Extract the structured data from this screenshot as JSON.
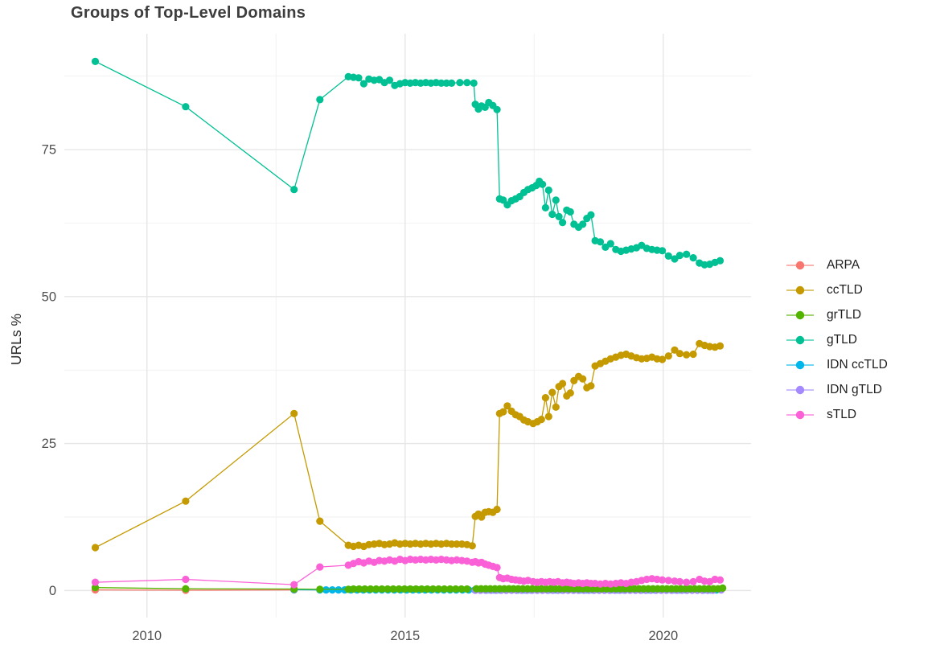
{
  "title": "Groups of Top-Level Domains",
  "axes": {
    "y_label": "URLs %",
    "y_tick_labels": [
      "0",
      "25",
      "50",
      "75"
    ],
    "x_tick_labels": [
      "2010",
      "2015",
      "2020"
    ]
  },
  "colors": {
    "background": "#ffffff",
    "grid_major": "#e6e6e6",
    "grid_minor": "#f2f2f2",
    "axis_text": "#4f4f4f",
    "axis_title_text": "#2e2e2e",
    "title_text": "#3d3d3d",
    "legend_text": "#1f1f1f"
  },
  "chart_data": {
    "type": "line",
    "title": "Groups of Top-Level Domains",
    "xlabel": "",
    "ylabel": "URLs %",
    "xlim": [
      2008.4,
      2021.7
    ],
    "ylim": [
      -4.6,
      94.7
    ],
    "x_ticks": [
      2010,
      2015,
      2020
    ],
    "x_minor_ticks": [
      2012.5,
      2017.5
    ],
    "y_ticks": [
      0,
      25,
      50,
      75
    ],
    "y_minor_ticks": [
      12.5,
      37.5,
      62.5,
      87.5
    ],
    "grid": true,
    "legend_position": "right",
    "marker_radius": 4.6,
    "draw_order": [
      0,
      4,
      5,
      2,
      6,
      1,
      3
    ],
    "series": [
      {
        "name": "ARPA",
        "color": "#F8766D",
        "points": [
          [
            2009.0,
            0.1
          ],
          [
            2010.75,
            0.05
          ],
          [
            2012.85,
            0.1
          ]
        ]
      },
      {
        "name": "ccTLD",
        "color": "#C49A00",
        "points": [
          [
            2009.0,
            7.3
          ],
          [
            2010.75,
            15.2
          ],
          [
            2012.85,
            30.1
          ],
          [
            2013.35,
            11.8
          ],
          [
            2013.9,
            7.7
          ],
          [
            2014.0,
            7.5
          ],
          [
            2014.1,
            7.7
          ],
          [
            2014.2,
            7.5
          ],
          [
            2014.3,
            7.8
          ],
          [
            2014.4,
            7.9
          ],
          [
            2014.5,
            8.0
          ],
          [
            2014.6,
            7.8
          ],
          [
            2014.7,
            7.9
          ],
          [
            2014.8,
            8.1
          ],
          [
            2014.9,
            7.9
          ],
          [
            2015.0,
            8.0
          ],
          [
            2015.1,
            7.9
          ],
          [
            2015.2,
            8.0
          ],
          [
            2015.3,
            7.9
          ],
          [
            2015.4,
            8.0
          ],
          [
            2015.5,
            7.9
          ],
          [
            2015.6,
            8.0
          ],
          [
            2015.7,
            7.9
          ],
          [
            2015.8,
            8.0
          ],
          [
            2015.9,
            7.9
          ],
          [
            2016.0,
            7.9
          ],
          [
            2016.1,
            7.9
          ],
          [
            2016.2,
            7.8
          ],
          [
            2016.3,
            7.6
          ],
          [
            2016.36,
            12.6
          ],
          [
            2016.42,
            13.0
          ],
          [
            2016.48,
            12.5
          ],
          [
            2016.55,
            13.3
          ],
          [
            2016.62,
            13.4
          ],
          [
            2016.7,
            13.3
          ],
          [
            2016.78,
            13.8
          ],
          [
            2016.83,
            30.1
          ],
          [
            2016.9,
            30.4
          ],
          [
            2016.98,
            31.4
          ],
          [
            2017.06,
            30.5
          ],
          [
            2017.14,
            29.9
          ],
          [
            2017.22,
            29.6
          ],
          [
            2017.3,
            29.0
          ],
          [
            2017.38,
            28.7
          ],
          [
            2017.48,
            28.4
          ],
          [
            2017.56,
            28.7
          ],
          [
            2017.64,
            29.1
          ],
          [
            2017.72,
            32.8
          ],
          [
            2017.78,
            29.6
          ],
          [
            2017.85,
            33.7
          ],
          [
            2017.92,
            31.2
          ],
          [
            2017.98,
            34.7
          ],
          [
            2018.05,
            35.2
          ],
          [
            2018.13,
            33.1
          ],
          [
            2018.2,
            33.6
          ],
          [
            2018.27,
            35.7
          ],
          [
            2018.36,
            36.4
          ],
          [
            2018.44,
            36.0
          ],
          [
            2018.52,
            34.5
          ],
          [
            2018.6,
            34.8
          ],
          [
            2018.68,
            38.2
          ],
          [
            2018.78,
            38.6
          ],
          [
            2018.88,
            39.0
          ],
          [
            2018.98,
            39.4
          ],
          [
            2019.08,
            39.7
          ],
          [
            2019.18,
            40.0
          ],
          [
            2019.28,
            40.2
          ],
          [
            2019.38,
            39.9
          ],
          [
            2019.48,
            39.6
          ],
          [
            2019.58,
            39.4
          ],
          [
            2019.68,
            39.5
          ],
          [
            2019.78,
            39.7
          ],
          [
            2019.88,
            39.4
          ],
          [
            2019.98,
            39.3
          ],
          [
            2020.1,
            39.9
          ],
          [
            2020.22,
            40.9
          ],
          [
            2020.32,
            40.3
          ],
          [
            2020.45,
            40.1
          ],
          [
            2020.58,
            40.2
          ],
          [
            2020.7,
            42.0
          ],
          [
            2020.8,
            41.7
          ],
          [
            2020.9,
            41.5
          ],
          [
            2021.0,
            41.4
          ],
          [
            2021.1,
            41.6
          ]
        ]
      },
      {
        "name": "grTLD",
        "color": "#53B400",
        "points": [
          [
            2009.0,
            0.5
          ],
          [
            2010.75,
            0.3
          ],
          [
            2012.85,
            0.25
          ],
          [
            2013.35,
            0.2
          ],
          [
            2013.9,
            0.2
          ],
          [
            2021.15,
            0.4
          ]
        ],
        "flat_runs": [
          {
            "from": 2014.0,
            "to": 2016.3,
            "step": 0.11,
            "y": 0.25
          },
          {
            "from": 2016.38,
            "to": 2021.08,
            "step": 0.09,
            "y": 0.3
          }
        ]
      },
      {
        "name": "gTLD",
        "color": "#00C094",
        "points": [
          [
            2009.0,
            90.0
          ],
          [
            2010.75,
            82.3
          ],
          [
            2012.85,
            68.2
          ],
          [
            2013.35,
            83.5
          ],
          [
            2013.9,
            87.4
          ],
          [
            2014.0,
            87.3
          ],
          [
            2014.1,
            87.2
          ],
          [
            2014.2,
            86.2
          ],
          [
            2014.3,
            87.0
          ],
          [
            2014.4,
            86.8
          ],
          [
            2014.5,
            86.9
          ],
          [
            2014.6,
            86.4
          ],
          [
            2014.7,
            86.8
          ],
          [
            2014.8,
            85.9
          ],
          [
            2014.9,
            86.2
          ],
          [
            2015.0,
            86.4
          ],
          [
            2015.1,
            86.3
          ],
          [
            2015.2,
            86.4
          ],
          [
            2015.3,
            86.3
          ],
          [
            2015.4,
            86.4
          ],
          [
            2015.5,
            86.3
          ],
          [
            2015.6,
            86.4
          ],
          [
            2015.7,
            86.3
          ],
          [
            2015.8,
            86.3
          ],
          [
            2015.9,
            86.3
          ],
          [
            2016.06,
            86.4
          ],
          [
            2016.2,
            86.4
          ],
          [
            2016.33,
            86.3
          ],
          [
            2016.36,
            82.7
          ],
          [
            2016.42,
            81.9
          ],
          [
            2016.48,
            82.4
          ],
          [
            2016.55,
            82.2
          ],
          [
            2016.62,
            83.0
          ],
          [
            2016.7,
            82.5
          ],
          [
            2016.78,
            81.8
          ],
          [
            2016.83,
            66.6
          ],
          [
            2016.9,
            66.4
          ],
          [
            2016.98,
            65.6
          ],
          [
            2017.06,
            66.3
          ],
          [
            2017.14,
            66.6
          ],
          [
            2017.22,
            67.0
          ],
          [
            2017.3,
            67.7
          ],
          [
            2017.38,
            68.2
          ],
          [
            2017.46,
            68.5
          ],
          [
            2017.54,
            68.9
          ],
          [
            2017.6,
            69.6
          ],
          [
            2017.66,
            69.1
          ],
          [
            2017.72,
            65.1
          ],
          [
            2017.78,
            68.1
          ],
          [
            2017.85,
            64.0
          ],
          [
            2017.92,
            66.4
          ],
          [
            2017.98,
            63.6
          ],
          [
            2018.05,
            62.6
          ],
          [
            2018.13,
            64.7
          ],
          [
            2018.2,
            64.4
          ],
          [
            2018.27,
            62.3
          ],
          [
            2018.36,
            61.8
          ],
          [
            2018.44,
            62.3
          ],
          [
            2018.52,
            63.3
          ],
          [
            2018.6,
            63.9
          ],
          [
            2018.68,
            59.5
          ],
          [
            2018.78,
            59.3
          ],
          [
            2018.88,
            58.4
          ],
          [
            2018.98,
            59.0
          ],
          [
            2019.08,
            58.0
          ],
          [
            2019.18,
            57.7
          ],
          [
            2019.28,
            57.9
          ],
          [
            2019.38,
            58.1
          ],
          [
            2019.48,
            58.3
          ],
          [
            2019.58,
            58.7
          ],
          [
            2019.68,
            58.2
          ],
          [
            2019.78,
            58.0
          ],
          [
            2019.88,
            57.9
          ],
          [
            2019.98,
            57.8
          ],
          [
            2020.1,
            56.9
          ],
          [
            2020.22,
            56.4
          ],
          [
            2020.32,
            57.0
          ],
          [
            2020.45,
            57.2
          ],
          [
            2020.58,
            56.6
          ],
          [
            2020.7,
            55.7
          ],
          [
            2020.8,
            55.4
          ],
          [
            2020.9,
            55.5
          ],
          [
            2021.0,
            55.8
          ],
          [
            2021.1,
            56.1
          ]
        ]
      },
      {
        "name": "IDN ccTLD",
        "color": "#00B6EB",
        "points": [
          [
            2012.85,
            0.15
          ]
        ],
        "flat_runs": [
          {
            "from": 2013.35,
            "to": 2021.1,
            "step": 0.12,
            "y": 0.1
          }
        ]
      },
      {
        "name": "IDN gTLD",
        "color": "#A58AFF",
        "points": [
          [
            2021.12,
            0.1
          ]
        ],
        "flat_runs": [
          {
            "from": 2016.36,
            "to": 2021.04,
            "step": 0.1,
            "y": 0.05
          }
        ]
      },
      {
        "name": "sTLD",
        "color": "#FB61D7",
        "points": [
          [
            2009.0,
            1.4
          ],
          [
            2010.75,
            1.9
          ],
          [
            2012.85,
            1.0
          ],
          [
            2013.35,
            4.0
          ],
          [
            2013.9,
            4.3
          ],
          [
            2014.0,
            4.6
          ],
          [
            2014.1,
            4.9
          ],
          [
            2014.2,
            4.7
          ],
          [
            2014.3,
            5.0
          ],
          [
            2014.4,
            4.8
          ],
          [
            2014.5,
            5.1
          ],
          [
            2014.6,
            5.0
          ],
          [
            2014.7,
            5.2
          ],
          [
            2014.8,
            5.0
          ],
          [
            2014.9,
            5.3
          ],
          [
            2015.0,
            5.1
          ],
          [
            2015.1,
            5.3
          ],
          [
            2015.2,
            5.2
          ],
          [
            2015.3,
            5.3
          ],
          [
            2015.4,
            5.2
          ],
          [
            2015.5,
            5.3
          ],
          [
            2015.6,
            5.2
          ],
          [
            2015.7,
            5.3
          ],
          [
            2015.8,
            5.2
          ],
          [
            2015.9,
            5.1
          ],
          [
            2016.0,
            5.2
          ],
          [
            2016.1,
            5.1
          ],
          [
            2016.2,
            5.0
          ],
          [
            2016.3,
            4.8
          ],
          [
            2016.36,
            4.9
          ],
          [
            2016.42,
            4.7
          ],
          [
            2016.48,
            4.8
          ],
          [
            2016.55,
            4.5
          ],
          [
            2016.62,
            4.3
          ],
          [
            2016.7,
            4.1
          ],
          [
            2016.78,
            3.9
          ],
          [
            2016.83,
            2.2
          ],
          [
            2016.9,
            2.0
          ],
          [
            2016.98,
            2.1
          ],
          [
            2017.06,
            1.9
          ],
          [
            2017.14,
            1.8
          ],
          [
            2017.22,
            1.7
          ],
          [
            2017.3,
            1.6
          ],
          [
            2017.38,
            1.7
          ],
          [
            2017.48,
            1.5
          ],
          [
            2017.56,
            1.4
          ],
          [
            2017.64,
            1.5
          ],
          [
            2017.72,
            1.4
          ],
          [
            2017.8,
            1.5
          ],
          [
            2017.88,
            1.4
          ],
          [
            2017.96,
            1.5
          ],
          [
            2018.05,
            1.3
          ],
          [
            2018.13,
            1.4
          ],
          [
            2018.2,
            1.3
          ],
          [
            2018.27,
            1.2
          ],
          [
            2018.36,
            1.3
          ],
          [
            2018.44,
            1.2
          ],
          [
            2018.52,
            1.3
          ],
          [
            2018.6,
            1.2
          ],
          [
            2018.68,
            1.2
          ],
          [
            2018.78,
            1.1
          ],
          [
            2018.88,
            1.2
          ],
          [
            2018.98,
            1.1
          ],
          [
            2019.08,
            1.2
          ],
          [
            2019.18,
            1.3
          ],
          [
            2019.28,
            1.2
          ],
          [
            2019.38,
            1.4
          ],
          [
            2019.48,
            1.5
          ],
          [
            2019.58,
            1.7
          ],
          [
            2019.68,
            1.9
          ],
          [
            2019.78,
            2.0
          ],
          [
            2019.88,
            1.9
          ],
          [
            2019.98,
            1.8
          ],
          [
            2020.1,
            1.7
          ],
          [
            2020.22,
            1.6
          ],
          [
            2020.32,
            1.5
          ],
          [
            2020.45,
            1.4
          ],
          [
            2020.58,
            1.5
          ],
          [
            2020.7,
            1.9
          ],
          [
            2020.8,
            1.6
          ],
          [
            2020.9,
            1.5
          ],
          [
            2021.0,
            1.9
          ],
          [
            2021.1,
            1.8
          ]
        ]
      }
    ]
  }
}
